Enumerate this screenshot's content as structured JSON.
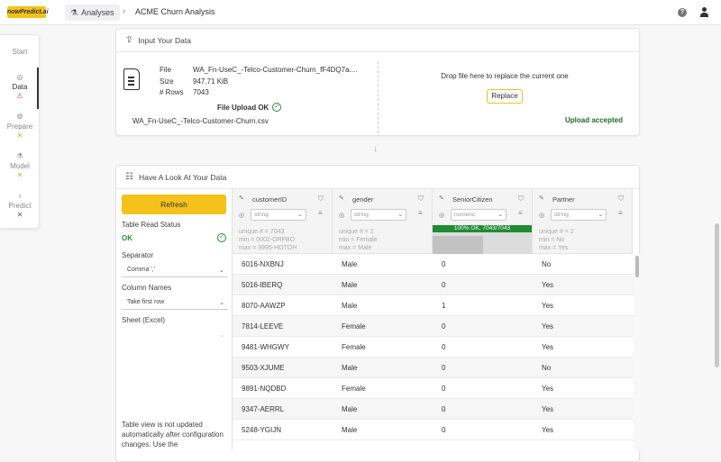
{
  "topbar": {
    "logo": "nowPredict.ai",
    "analyses_label": "Analyses",
    "analysis_title": "ACME Churn Analysis",
    "help_icon": "help-circle-icon",
    "user_icon": "user-icon"
  },
  "sidenav": {
    "items": [
      {
        "label": "Start",
        "icon": "",
        "status": ""
      },
      {
        "label": "Data",
        "icon": "database-icon",
        "status": "⚠"
      },
      {
        "label": "Prepare",
        "icon": "gear-icon",
        "status": "✕"
      },
      {
        "label": "Model",
        "icon": "flask-icon",
        "status": "✕"
      },
      {
        "label": "Predict",
        "icon": "bulb-icon",
        "status": "✕"
      }
    ]
  },
  "input_card": {
    "title": "Input Your Data",
    "file_label": "File",
    "file_value": "WA_Fn-UseC_-Telco-Customer-Churn_fF4DQ7a....",
    "size_label": "Size",
    "size_value": "947.71 KiB",
    "rows_label": "# Rows",
    "rows_value": "7043",
    "upload_ok": "File Upload OK",
    "filename": "WA_Fn-UseC_-Telco-Customer-Churn.csv",
    "drop_text": "Drop file here to replace the current one",
    "replace_label": "Replace",
    "upload_accepted": "Upload accepted",
    "accepted_color": "#1e6b2a"
  },
  "look_card": {
    "title": "Have A Look At Your Data",
    "refresh_label": "Refresh",
    "read_status_label": "Table Read Status",
    "read_status_value": "OK",
    "separator_label": "Separator",
    "separator_value": "Comma ','",
    "column_names_label": "Column Names",
    "column_names_value": "Take first row",
    "sheet_label": "Sheet (Excel)",
    "sheet_value": "",
    "note": "Table view is not updated automatically after configuration changes. Use the"
  },
  "columns": [
    {
      "name": "customerID",
      "type": "string",
      "stats": [
        "unique # = 7043",
        "min = 0002-ORFBO",
        "max = 9995-HOTOH"
      ]
    },
    {
      "name": "gender",
      "type": "string",
      "stats": [
        "unique # = 2",
        "min = Female",
        "max = Male"
      ]
    },
    {
      "name": "SeniorCitizen",
      "type": "numeric",
      "bar": "100% OK, 7043/7043"
    },
    {
      "name": "Partner",
      "type": "string",
      "stats": [
        "unique # = 2",
        "min = No",
        "max = Yes"
      ]
    }
  ],
  "rows": [
    [
      "6016-NXBNJ",
      "Male",
      "0",
      "No"
    ],
    [
      "5016-IBERQ",
      "Male",
      "0",
      "Yes"
    ],
    [
      "8070-AAWZP",
      "Male",
      "1",
      "Yes"
    ],
    [
      "7814-LEEVE",
      "Female",
      "0",
      "Yes"
    ],
    [
      "9481-WHGWY",
      "Female",
      "0",
      "Yes"
    ],
    [
      "9503-XJUME",
      "Male",
      "0",
      "No"
    ],
    [
      "9891-NQDBD",
      "Female",
      "0",
      "Yes"
    ],
    [
      "9347-AERRL",
      "Male",
      "0",
      "Yes"
    ],
    [
      "5248-YGIJN",
      "Male",
      "0",
      "Yes"
    ]
  ]
}
